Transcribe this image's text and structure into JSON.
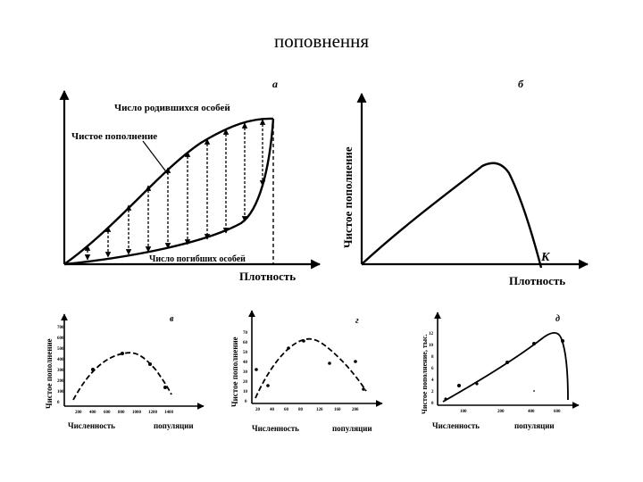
{
  "slide": {
    "title": "поповнення"
  },
  "panels": {
    "a": {
      "letter": "а",
      "born_label": "Число родившихся особей",
      "net_label": "Чистое пополнение",
      "dead_label": "Число погибших особей",
      "xlabel": "Плотность"
    },
    "b": {
      "letter": "б",
      "ylabel": "Чистое пополнение",
      "xlabel": "Плотность",
      "k_label": "K"
    },
    "v": {
      "letter": "в",
      "ylabel": "Чистое пополнение",
      "xlabel_1": "Численность",
      "xlabel_2": "популяции",
      "xticks": [
        "200",
        "400",
        "600",
        "800",
        "1000",
        "1200",
        "1400"
      ],
      "yticks": [
        "0",
        "100",
        "200",
        "300",
        "400",
        "500",
        "600",
        "700"
      ]
    },
    "g": {
      "letter": "г",
      "ylabel": "Чистое пополнение",
      "xlabel_1": "Численность",
      "xlabel_2": "популяции",
      "xticks": [
        "20",
        "40",
        "60",
        "80",
        "120",
        "160",
        "200"
      ],
      "yticks": [
        "0",
        "10",
        "20",
        "30",
        "40",
        "50",
        "60",
        "70"
      ]
    },
    "d": {
      "letter": "д",
      "ylabel": "Чистое пополнение, тыс.",
      "xlabel_1": "Численность",
      "xlabel_2": "популяции",
      "xticks": [
        "100",
        "200",
        "400",
        "600"
      ],
      "yticks": [
        "0",
        "2",
        "4",
        "6",
        "8",
        "10",
        "12"
      ]
    }
  }
}
